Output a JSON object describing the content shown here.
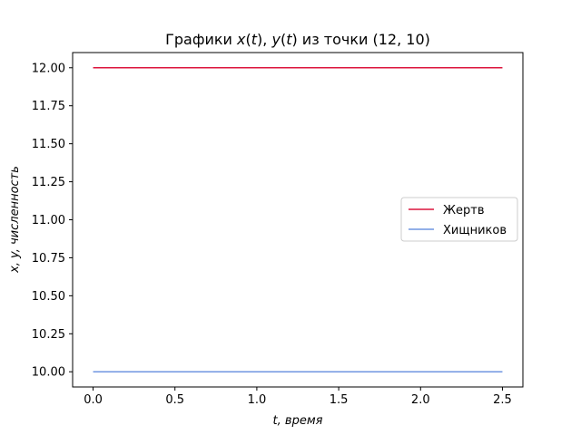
{
  "chart_data": {
    "type": "line",
    "title": "Графики x(t), y(t) из точки (12, 10)",
    "title_parts": {
      "prefix": "Графики ",
      "math_x": "x",
      "math_lp1": "(",
      "math_t1": "t",
      "math_rp1": "), ",
      "math_y": "y",
      "math_lp2": "(",
      "math_t2": "t",
      "math_rp2": ")",
      "suffix": " из точки (12, 10)"
    },
    "xlabel": "t, время",
    "ylabel": "x, y, численность",
    "xlim": [
      -0.125,
      2.625
    ],
    "ylim": [
      9.9,
      12.1
    ],
    "xticks": [
      0.0,
      0.5,
      1.0,
      1.5,
      2.0,
      2.5
    ],
    "xtick_labels": [
      "0.0",
      "0.5",
      "1.0",
      "1.5",
      "2.0",
      "2.5"
    ],
    "yticks": [
      10.0,
      10.25,
      10.5,
      10.75,
      11.0,
      11.25,
      11.5,
      11.75,
      12.0
    ],
    "ytick_labels": [
      "10.00",
      "10.25",
      "10.50",
      "10.75",
      "11.00",
      "11.25",
      "11.50",
      "11.75",
      "12.00"
    ],
    "legend_position": "center-right",
    "grid": false,
    "series": [
      {
        "name": "Жертв",
        "color": "#dc143c",
        "x": [
          0.0,
          2.5
        ],
        "y": [
          12.0,
          12.0
        ]
      },
      {
        "name": "Хищников",
        "color": "#6f95e0",
        "x": [
          0.0,
          2.5
        ],
        "y": [
          10.0,
          10.0
        ]
      }
    ]
  }
}
